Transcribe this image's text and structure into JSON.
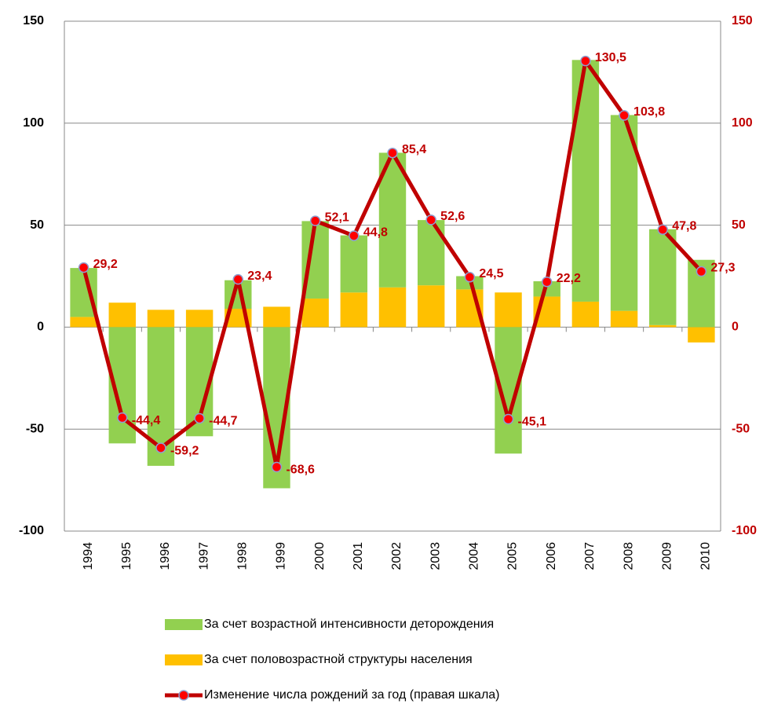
{
  "chart_data": {
    "type": "bar",
    "categories": [
      "1994",
      "1995",
      "1996",
      "1997",
      "1998",
      "1999",
      "2000",
      "2001",
      "2002",
      "2003",
      "2004",
      "2005",
      "2006",
      "2007",
      "2008",
      "2009",
      "2010"
    ],
    "series": [
      {
        "name": "За счет возрастной интенсивности деторождения",
        "color": "#92d050",
        "values": [
          24,
          -57,
          -68,
          -53.5,
          14,
          -79,
          38,
          28,
          66,
          32,
          6.5,
          -62,
          7.5,
          118.5,
          96,
          47,
          33
        ]
      },
      {
        "name": "За счет половозрастной структуры населения",
        "color": "#ffc000",
        "values": [
          5,
          12,
          8.5,
          8.5,
          9,
          10,
          14,
          17,
          19.5,
          20.5,
          18.5,
          17,
          15,
          12.5,
          8,
          1,
          -7.5
        ]
      },
      {
        "name": "Изменение числа рождений  за год (правая шкала)",
        "color": "#c00000",
        "type": "line",
        "axis": "y2",
        "values": [
          29.2,
          -44.4,
          -59.2,
          -44.7,
          23.4,
          -68.6,
          52.1,
          44.8,
          85.4,
          52.6,
          24.5,
          -45.1,
          22.2,
          130.5,
          103.8,
          47.8,
          27.3
        ],
        "value_labels": [
          "29,2",
          "-44,4",
          "-59,2",
          "-44,7",
          "23,4",
          "-68,6",
          "52,1",
          "44,8",
          "85,4",
          "52,6",
          "24,5",
          "-45,1",
          "22,2",
          "130,5",
          "103,8",
          "47,8",
          "27,3"
        ]
      }
    ],
    "ylim": [
      -100,
      150
    ],
    "yticks": [
      -100,
      -50,
      0,
      50,
      100,
      150
    ],
    "y2lim": [
      -100,
      150
    ],
    "y2ticks": [
      -100,
      -50,
      0,
      50,
      100,
      150
    ],
    "grid": true,
    "stacked": true,
    "legend": "bottom"
  }
}
